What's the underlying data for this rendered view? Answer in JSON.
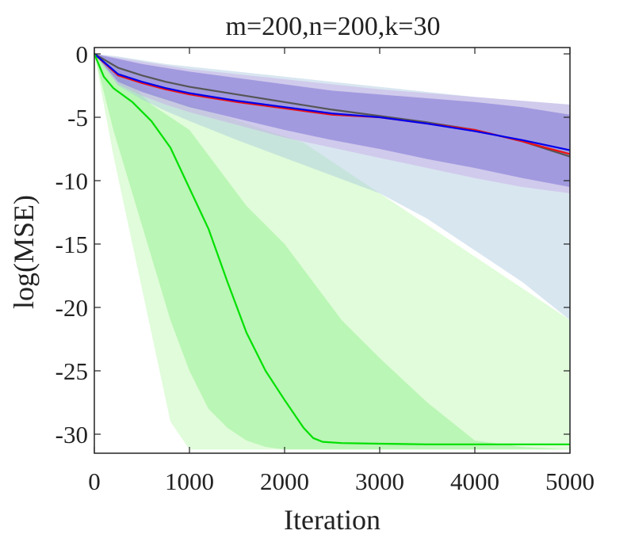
{
  "chart_data": {
    "type": "line",
    "title": "m=200,n=200,k=30",
    "xlabel": "Iteration",
    "ylabel": "log(MSE)",
    "xlim": [
      0,
      5000
    ],
    "ylim": [
      -31.5,
      0.5
    ],
    "xticks": [
      0,
      1000,
      2000,
      3000,
      4000,
      5000
    ],
    "yticks": [
      0,
      -5,
      -10,
      -15,
      -20,
      -25,
      -30
    ],
    "grid": false,
    "legend": "none",
    "series": [
      {
        "color": "#00e000",
        "x": [
          0,
          100,
          200,
          400,
          600,
          800,
          1000,
          1200,
          1400,
          1600,
          1800,
          2000,
          2200,
          2300,
          2400,
          2600,
          3000,
          3500,
          4000,
          4500,
          5000
        ],
        "y": [
          0,
          -1.8,
          -2.7,
          -3.8,
          -5.3,
          -7.4,
          -10.6,
          -13.8,
          -18.0,
          -22.0,
          -25.0,
          -27.3,
          -29.5,
          -30.3,
          -30.6,
          -30.7,
          -30.75,
          -30.8,
          -30.8,
          -30.8,
          -30.8
        ],
        "band_inner": {
          "color": "#b6f5b0",
          "upper": [
            0,
            -0.5,
            -1.5,
            -2.5,
            -4.0,
            -5.0,
            -6.0,
            -8.0,
            -10.0,
            -12.0,
            -13.5,
            -15.0,
            -17.0,
            -18.0,
            -19.0,
            -21.0,
            -24.0,
            -27.5,
            -30.5,
            -31.0,
            -31.2
          ],
          "lower": [
            0,
            -3,
            -6,
            -11,
            -16,
            -21,
            -25,
            -28,
            -29.5,
            -30.5,
            -31.0,
            -31.2,
            -31.2,
            -31.2,
            -31.2,
            -31.2,
            -31.2,
            -31.2,
            -31.2,
            -31.2,
            -31.2
          ]
        },
        "band_outer": {
          "color": "#dafbd4",
          "upper": [
            0,
            -0.3,
            -1.0,
            -2.0,
            -3.0,
            -3.5,
            -4.0,
            -4.5,
            -5.0,
            -5.5,
            -6.0,
            -6.5,
            -7.0,
            -7.5,
            -8.0,
            -9.0,
            -11.0,
            -13.5,
            -16.0,
            -18.5,
            -21.0
          ],
          "lower": [
            0,
            -4,
            -8,
            -15,
            -22,
            -29,
            -31.2,
            -31.2,
            -31.2,
            -31.2,
            -31.2,
            -31.2,
            -31.2,
            -31.2,
            -31.2,
            -31.2,
            -31.2,
            -31.2,
            -31.2,
            -31.2,
            -31.2
          ]
        }
      },
      {
        "color": "#0000ee",
        "x": [
          0,
          250,
          500,
          750,
          1000,
          1500,
          2000,
          2500,
          3000,
          3500,
          4000,
          4500,
          5000
        ],
        "y": [
          0,
          -1.6,
          -2.2,
          -2.7,
          -3.1,
          -3.7,
          -4.2,
          -4.7,
          -5.0,
          -5.5,
          -6.1,
          -6.8,
          -7.6
        ],
        "band": {
          "color": "#7c72d6",
          "opacity": 0.55,
          "upper": [
            0,
            -0.4,
            -0.8,
            -1.1,
            -1.4,
            -1.9,
            -2.4,
            -2.9,
            -3.2,
            -3.5,
            -3.8,
            -4.2,
            -4.8
          ],
          "lower": [
            0,
            -2.2,
            -3.0,
            -3.6,
            -4.2,
            -5.1,
            -6.0,
            -6.8,
            -7.5,
            -8.3,
            -9.0,
            -9.8,
            -10.5
          ]
        }
      },
      {
        "color": "#ee1111",
        "x": [
          0,
          250,
          500,
          750,
          1000,
          1500,
          2000,
          2500,
          3000,
          3500,
          4000,
          4500,
          5000
        ],
        "y": [
          0,
          -1.7,
          -2.3,
          -2.8,
          -3.2,
          -3.8,
          -4.3,
          -4.8,
          -5.0,
          -5.5,
          -6.0,
          -6.9,
          -7.9
        ],
        "band": {
          "color": "#c7a8e6",
          "opacity": 0.45,
          "upper": [
            0,
            -0.3,
            -0.6,
            -0.9,
            -1.2,
            -1.6,
            -2.0,
            -2.4,
            -2.8,
            -3.1,
            -3.4,
            -3.7,
            -4.0
          ],
          "lower": [
            0,
            -2.4,
            -3.3,
            -4.0,
            -4.6,
            -5.6,
            -6.6,
            -7.4,
            -8.2,
            -9.0,
            -9.8,
            -10.5,
            -11.0
          ]
        }
      },
      {
        "color": "#555555",
        "x": [
          0,
          250,
          500,
          750,
          1000,
          1500,
          2000,
          2500,
          3000,
          3500,
          4000,
          4500,
          5000
        ],
        "y": [
          0,
          -1.1,
          -1.7,
          -2.2,
          -2.6,
          -3.2,
          -3.8,
          -4.4,
          -4.9,
          -5.4,
          -6.0,
          -6.9,
          -8.1
        ],
        "band": {
          "color": "#a9c7dd",
          "opacity": 0.45,
          "upper": [
            0,
            -0.2,
            -0.5,
            -0.8,
            -1.0,
            -1.4,
            -1.8,
            -2.2,
            -2.6,
            -3.0,
            -3.4,
            -3.7,
            -4.0
          ],
          "lower": [
            0,
            -2.5,
            -3.6,
            -4.5,
            -5.3,
            -6.8,
            -8.2,
            -9.6,
            -11.0,
            -13.0,
            -15.5,
            -18.0,
            -21.0
          ]
        }
      }
    ]
  }
}
